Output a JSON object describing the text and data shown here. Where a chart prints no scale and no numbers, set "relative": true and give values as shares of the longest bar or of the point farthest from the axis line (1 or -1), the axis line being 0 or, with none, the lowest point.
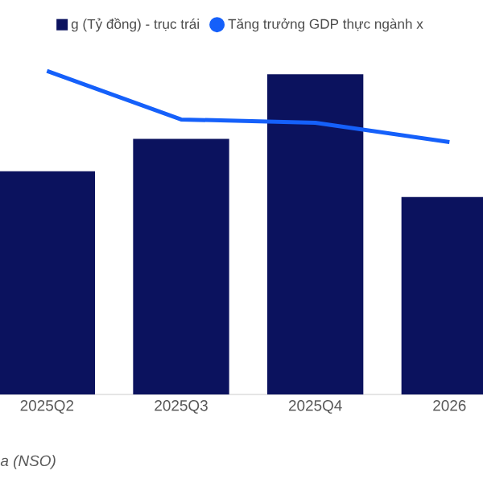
{
  "chart_data": {
    "type": "bar",
    "relative": true,
    "categories": [
      "2025Q2",
      "2025Q3",
      "2025Q4",
      "2026"
    ],
    "series": [
      {
        "name": "g (Tỷ đồng) - trục trái",
        "color": "#0b125e",
        "values": [
          0.69,
          0.79,
          0.99,
          0.61
        ]
      },
      {
        "name": "Tăng trưởng GDP thực ngành x",
        "type": "line",
        "color": "#1560fa",
        "values": [
          1.0,
          0.85,
          0.84,
          0.78
        ]
      }
    ],
    "legend": "top",
    "annotations": [
      "a (NSO)"
    ]
  }
}
